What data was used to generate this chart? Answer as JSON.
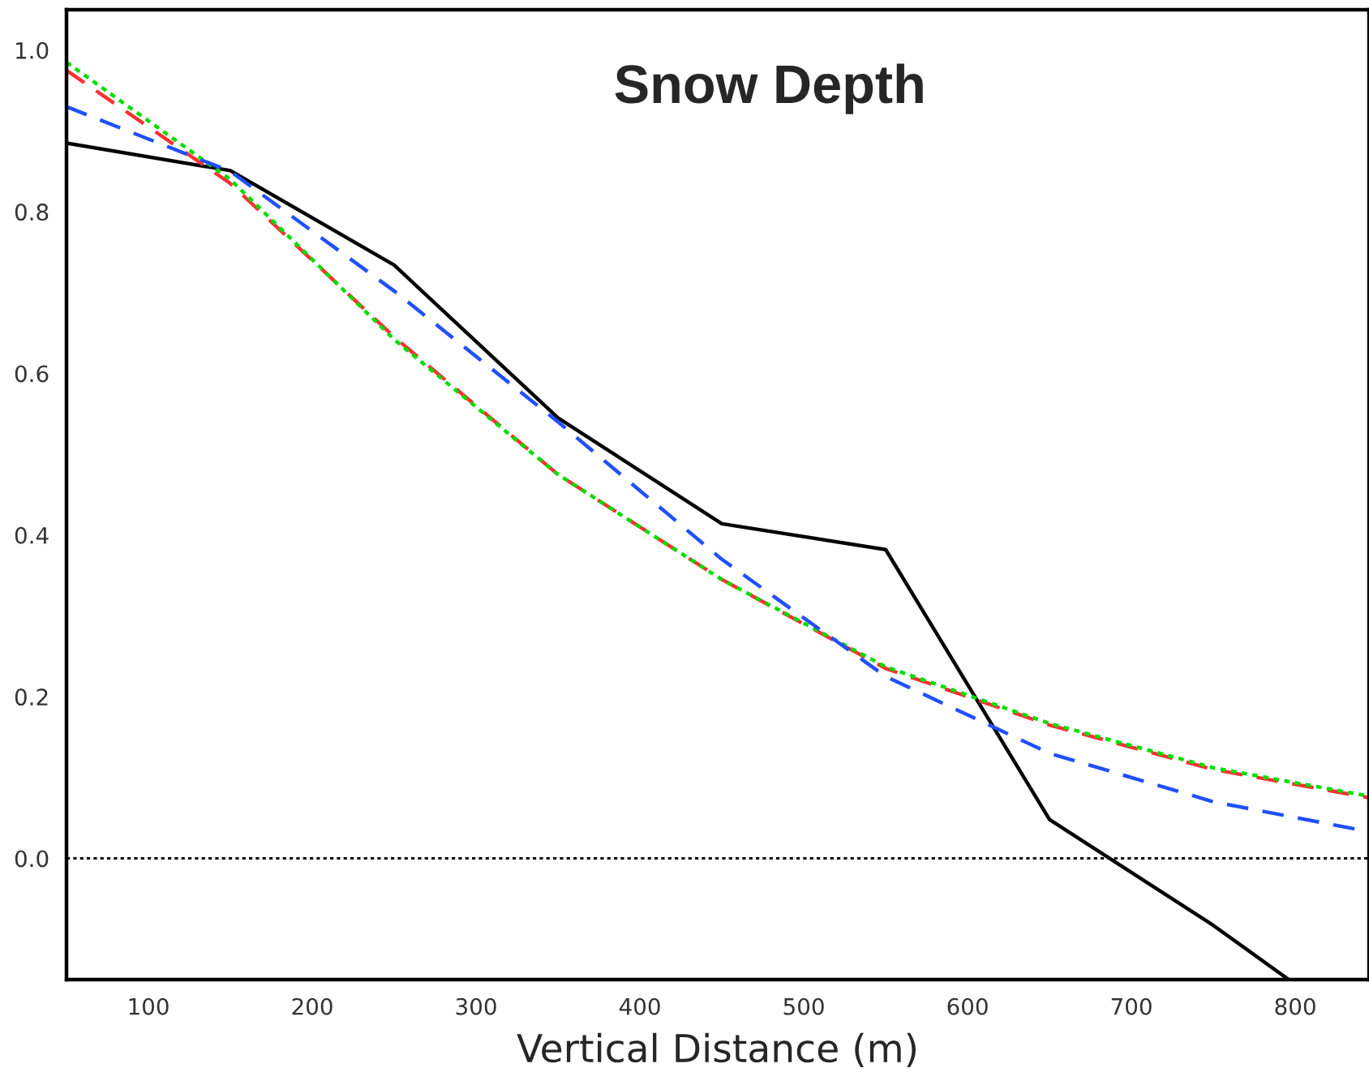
{
  "chart_data": {
    "type": "line",
    "title": "Snow Depth",
    "xlabel": "Vertical Distance (m)",
    "x": [
      50,
      150,
      250,
      350,
      450,
      550,
      650,
      750,
      845
    ],
    "series": [
      {
        "color": "#000000",
        "line_style": "solid",
        "x": [
          50,
          150,
          250,
          350,
          450,
          550,
          650,
          750,
          796
        ],
        "values": [
          0.885,
          0.851,
          0.734,
          0.545,
          0.414,
          0.382,
          0.048,
          -0.083,
          -0.15
        ]
      },
      {
        "color": "#ff3030",
        "line_style": "dashed",
        "values": [
          0.975,
          0.835,
          0.645,
          0.475,
          0.345,
          0.235,
          0.165,
          0.11,
          0.075
        ]
      },
      {
        "color": "#00dd00",
        "line_style": "dotted",
        "values": [
          0.985,
          0.84,
          0.642,
          0.475,
          0.345,
          0.237,
          0.167,
          0.112,
          0.077
        ]
      },
      {
        "color": "#2050ff",
        "line_style": "dashed",
        "x": [
          50,
          150,
          250,
          350,
          450,
          550,
          650,
          750,
          840
        ],
        "values": [
          0.93,
          0.85,
          0.702,
          0.54,
          0.37,
          0.225,
          0.13,
          0.07,
          0.035
        ]
      }
    ],
    "xlim": [
      50,
      845
    ],
    "ylim": [
      -0.15,
      1.05
    ],
    "xticks": [
      100,
      200,
      300,
      400,
      500,
      600,
      700,
      800
    ],
    "yticks": [
      {
        "value": 0,
        "label": "0.0"
      },
      0.2,
      0.4,
      0.6,
      0.8,
      {
        "value": 1,
        "label": "1.0"
      }
    ],
    "ref_lines": [
      {
        "axis": "y",
        "value": 0,
        "color": "#000000",
        "line_style": "dotted"
      }
    ],
    "grid": false,
    "legend": false
  }
}
